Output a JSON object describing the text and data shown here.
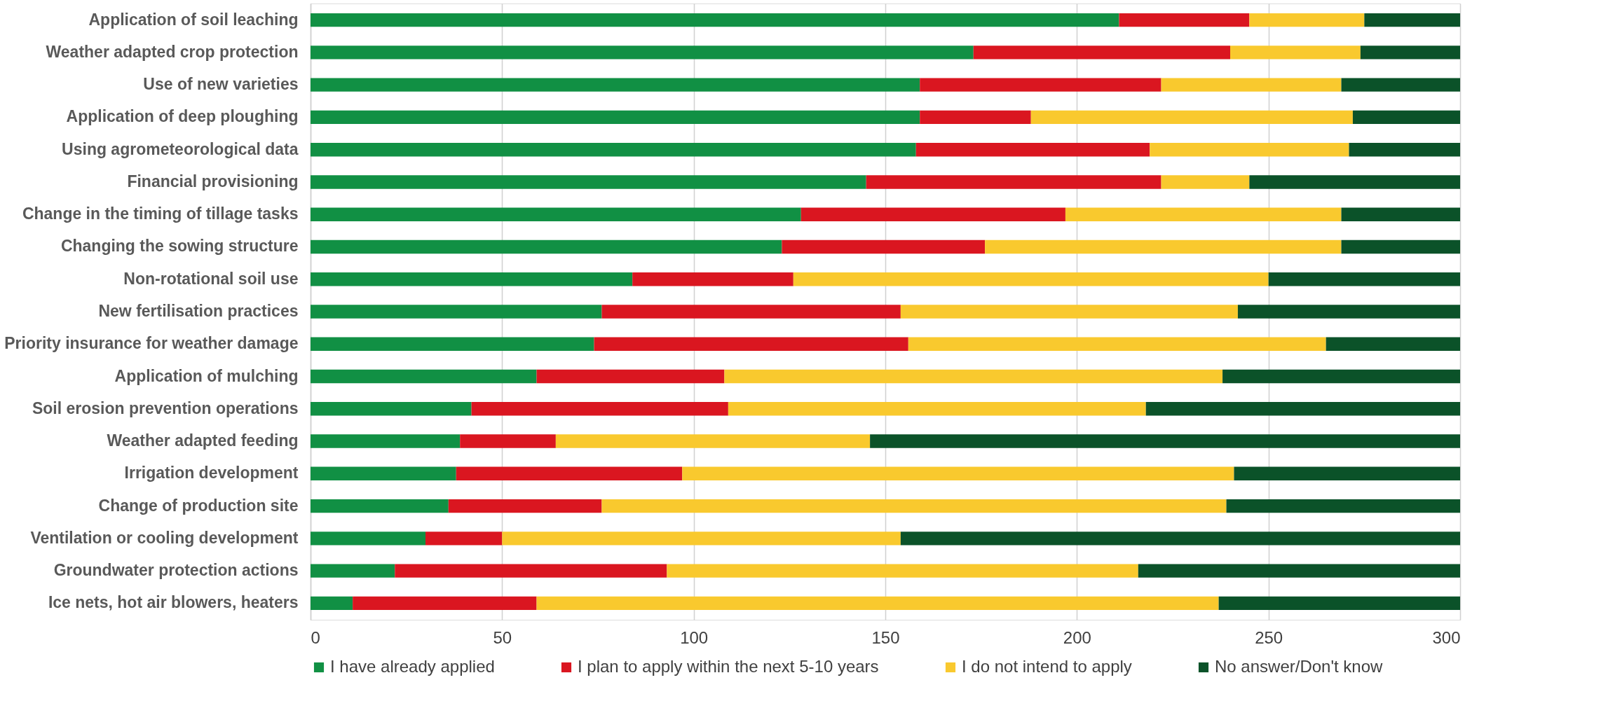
{
  "chart_data": {
    "type": "bar",
    "orientation": "horizontal",
    "stacked": true,
    "categories": [
      "Application of soil leaching",
      "Weather adapted crop protection",
      "Use of new varieties",
      "Application of deep ploughing",
      "Using agrometeorological data",
      "Financial provisioning",
      "Change in the timing of tillage tasks",
      "Changing the sowing structure",
      "Non-rotational soil use",
      "New fertilisation practices",
      "Priority insurance for weather damage",
      "Application of mulching",
      "Soil erosion prevention operations",
      "Weather adapted feeding",
      "Irrigation development",
      "Change of production site",
      "Ventilation or cooling development",
      "Groundwater protection actions",
      "Ice nets, hot air blowers, heaters"
    ],
    "series": [
      {
        "name": "I have already applied",
        "color": "#119044",
        "values": [
          211,
          173,
          159,
          159,
          158,
          145,
          128,
          123,
          84,
          76,
          74,
          59,
          42,
          39,
          38,
          36,
          30,
          22,
          11
        ]
      },
      {
        "name": "I plan to apply within the next 5-10 years",
        "color": "#da1620",
        "values": [
          34,
          67,
          63,
          29,
          61,
          77,
          69,
          53,
          42,
          78,
          82,
          49,
          67,
          25,
          59,
          40,
          20,
          71,
          48
        ]
      },
      {
        "name": "I do not intend to apply",
        "color": "#f9c92e",
        "values": [
          30,
          34,
          47,
          84,
          52,
          23,
          72,
          93,
          124,
          88,
          109,
          130,
          109,
          82,
          144,
          163,
          104,
          123,
          178
        ]
      },
      {
        "name": "No answer/Don't know",
        "color": "#0b5229",
        "values": [
          25,
          26,
          31,
          28,
          29,
          55,
          31,
          31,
          50,
          58,
          35,
          62,
          82,
          154,
          59,
          61,
          146,
          84,
          63
        ]
      }
    ],
    "xlim": [
      0,
      300
    ],
    "xticks": [
      0,
      50,
      100,
      150,
      200,
      250,
      300
    ],
    "grid": "x",
    "legend": "bottom"
  }
}
